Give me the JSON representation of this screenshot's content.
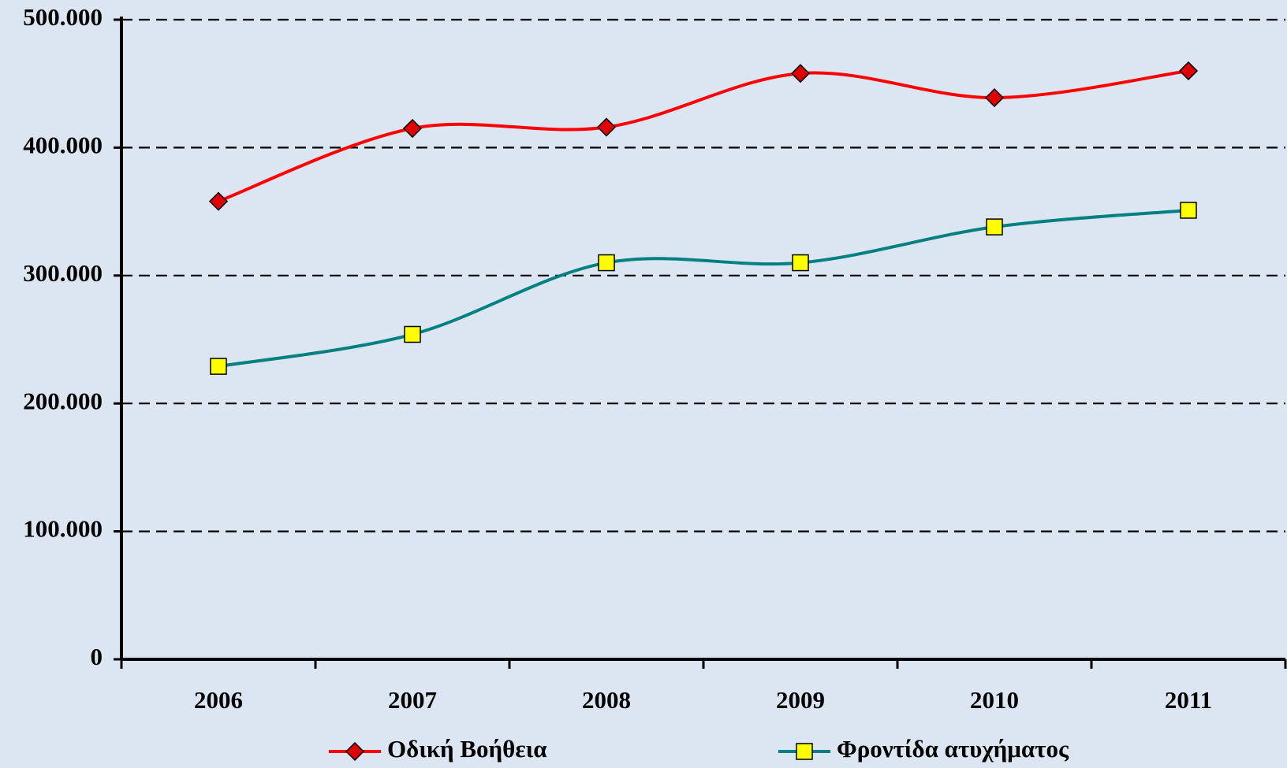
{
  "chart_data": {
    "type": "line",
    "categories": [
      "2006",
      "2007",
      "2008",
      "2009",
      "2010",
      "2011"
    ],
    "series": [
      {
        "name": "Οδική Βοήθεια",
        "color": "#ff0000",
        "marker": "diamond",
        "marker_color": "#e00000",
        "values": [
          358000,
          415000,
          416000,
          458000,
          439000,
          460000
        ]
      },
      {
        "name": "Φροντίδα ατυχήματος",
        "color": "#008080",
        "marker": "square",
        "marker_color": "#ffff00",
        "values": [
          229000,
          254000,
          310000,
          310000,
          338000,
          351000
        ]
      }
    ],
    "ylim": [
      0,
      500000
    ],
    "yticks": [
      0,
      {
        "value": 100000,
        "label": "100.000"
      },
      {
        "value": 200000,
        "label": "200.000"
      },
      {
        "value": 300000,
        "label": "300.000"
      },
      {
        "value": 400000,
        "label": "400.000"
      },
      {
        "value": 500000,
        "label": "500.000"
      }
    ],
    "grid": true,
    "smooth": true,
    "legend": "bottom"
  }
}
